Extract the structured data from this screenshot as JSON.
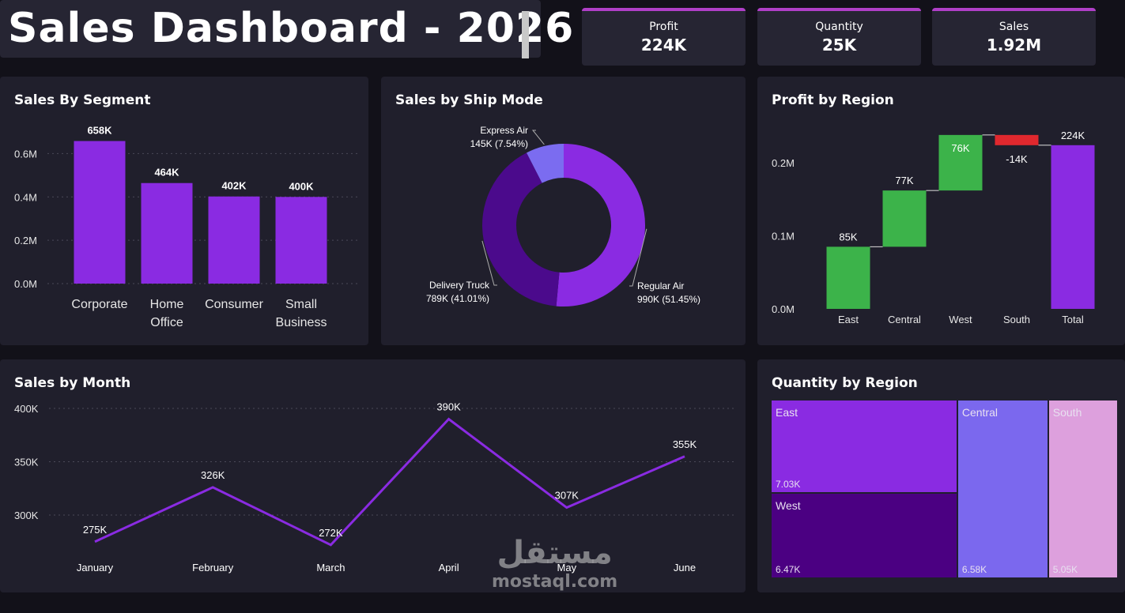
{
  "header": {
    "title": "Sales Dashboard - 2026"
  },
  "kpis": [
    {
      "label": "Profit",
      "value": "224K"
    },
    {
      "label": "Quantity",
      "value": "25K"
    },
    {
      "label": "Sales",
      "value": "1.92M"
    }
  ],
  "colors": {
    "purple": "#8a2be2",
    "green": "#3cb34a",
    "red": "#e0282e",
    "background": "#121119",
    "card": "#201f2c"
  },
  "watermark": {
    "arabic": "مستقل",
    "latin": "mostaql.com"
  },
  "segment_chart": {
    "title": "Sales By Segment"
  },
  "ship_chart": {
    "title": "Sales by Ship Mode"
  },
  "region_chart": {
    "title": "Profit by Region"
  },
  "month_chart": {
    "title": "Sales by Month"
  },
  "quantity_chart": {
    "title": "Quantity by Region"
  },
  "chart_data": [
    {
      "type": "bar",
      "title": "Sales By Segment",
      "categories": [
        "Corporate",
        "Home Office",
        "Consumer",
        "Small Business"
      ],
      "values": [
        658000,
        464000,
        402000,
        400000
      ],
      "data_labels": [
        "658K",
        "464K",
        "402K",
        "400K"
      ],
      "yticks": [
        "0.0M",
        "0.2M",
        "0.4M",
        "0.6M"
      ],
      "ylim": [
        0,
        700000
      ],
      "grid": true
    },
    {
      "type": "pie",
      "title": "Sales by Ship Mode",
      "donut": true,
      "slices": [
        {
          "name": "Regular Air",
          "value": 990000,
          "label": "990K (51.45%)",
          "percent": 51.45,
          "color": "#8a2be2"
        },
        {
          "name": "Delivery Truck",
          "value": 789000,
          "label": "789K (41.01%)",
          "percent": 41.01,
          "color": "#4b0a8c"
        },
        {
          "name": "Express Air",
          "value": 145000,
          "label": "145K (7.54%)",
          "percent": 7.54,
          "color": "#7b6cf0"
        }
      ]
    },
    {
      "type": "bar",
      "subtype": "waterfall",
      "title": "Profit by Region",
      "categories": [
        "East",
        "Central",
        "West",
        "South",
        "Total"
      ],
      "values": [
        85000,
        77000,
        76000,
        -14000,
        224000
      ],
      "data_labels": [
        "85K",
        "77K",
        "76K",
        "-14K",
        "224K"
      ],
      "yticks": [
        "0.0M",
        "0.1M",
        "0.2M"
      ],
      "ylim": [
        0,
        240000
      ]
    },
    {
      "type": "line",
      "title": "Sales by Month",
      "x": [
        "January",
        "February",
        "March",
        "April",
        "May",
        "June"
      ],
      "y": [
        275000,
        326000,
        272000,
        390000,
        307000,
        355000
      ],
      "data_labels": [
        "275K",
        "326K",
        "272K",
        "390K",
        "307K",
        "355K"
      ],
      "yticks": [
        "300K",
        "350K",
        "400K"
      ],
      "ylim": [
        265000,
        400000
      ],
      "grid": true
    },
    {
      "type": "heatmap",
      "subtype": "treemap",
      "title": "Quantity by Region",
      "items": [
        {
          "name": "East",
          "value": 7030,
          "label": "7.03K",
          "color": "#8a2be2"
        },
        {
          "name": "West",
          "value": 6470,
          "label": "6.47K",
          "color": "#4b0082"
        },
        {
          "name": "Central",
          "value": 6580,
          "label": "6.58K",
          "color": "#7b68ee"
        },
        {
          "name": "South",
          "value": 5050,
          "label": "5.05K",
          "color": "#dda0dd"
        }
      ]
    }
  ]
}
